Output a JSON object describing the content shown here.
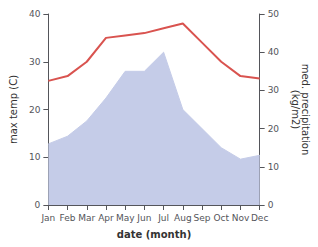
{
  "chart_data": {
    "type": "line",
    "categories": [
      "Jan",
      "Feb",
      "Mar",
      "Apr",
      "May",
      "Jun",
      "Jul",
      "Aug",
      "Sep",
      "Oct",
      "Nov",
      "Dec"
    ],
    "series": [
      {
        "type": "area",
        "axis": "y2",
        "color": "#c5cce8",
        "values": [
          16,
          18,
          22,
          28,
          35,
          35,
          40,
          25,
          20,
          15,
          12,
          13
        ]
      },
      {
        "type": "line",
        "color": "#d9534f",
        "values": [
          26,
          27,
          30,
          35,
          35.5,
          36,
          37,
          38,
          34,
          30,
          27,
          26.5
        ]
      }
    ],
    "xlabel": "date (month)",
    "ylabel": "max temp (C)",
    "y2label": "med. precipitation\n(kg/m2)",
    "ylim": [
      0,
      40
    ],
    "yticks": [
      0,
      10,
      20,
      30,
      40
    ],
    "y2lim": [
      0,
      50
    ],
    "y2ticks": [
      0,
      10,
      20,
      30,
      40,
      50
    ],
    "grid": false
  }
}
